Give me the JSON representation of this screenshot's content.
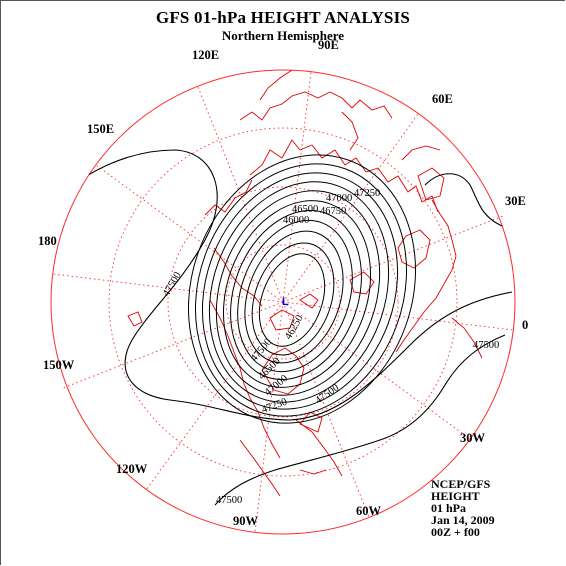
{
  "header": {
    "title": "GFS 01-hPa HEIGHT ANALYSIS",
    "subtitle": "Northern Hemisphere"
  },
  "map": {
    "projection": "polar-stereographic",
    "hemisphere": "north",
    "graticule_color": "#ff0000",
    "coastline_color": "#ff0000",
    "contour_color": "#000000",
    "low_marker_color": "#0000ff",
    "low_marker_label": "L",
    "longitude_labels": {
      "lon_90e": "90E",
      "lon_60e": "60E",
      "lon_120e": "120E",
      "lon_150e": "150E",
      "lon_30e": "30E",
      "lon_180": "180",
      "lon_0": "0",
      "lon_150w": "150W",
      "lon_30w": "30W",
      "lon_120w": "120W",
      "lon_60w": "60W",
      "lon_90w": "90W"
    },
    "contour_labels": [
      {
        "value": "47000"
      },
      {
        "value": "47250"
      },
      {
        "value": "46750"
      },
      {
        "value": "46500"
      },
      {
        "value": "46000"
      },
      {
        "value": "47500"
      },
      {
        "value": "47500"
      },
      {
        "value": "47500"
      },
      {
        "value": "47500"
      },
      {
        "value": "47000"
      },
      {
        "value": "47250"
      },
      {
        "value": "46500"
      },
      {
        "value": "46250"
      },
      {
        "value": "47500"
      }
    ]
  },
  "info": {
    "source": "NCEP/GFS",
    "field": "HEIGHT",
    "level": "01 hPa",
    "date": "Jan 14, 2009",
    "cycle": "00Z + f00"
  }
}
